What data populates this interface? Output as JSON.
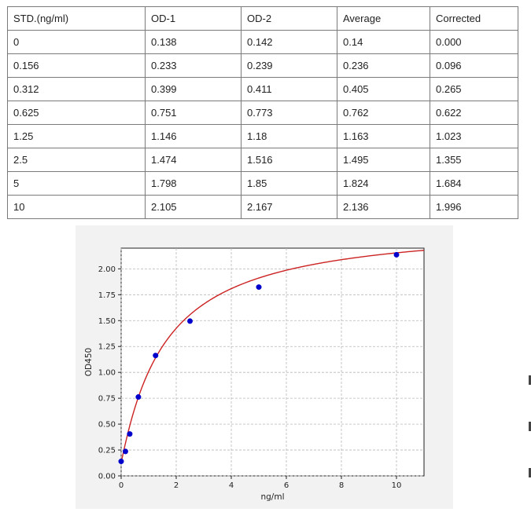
{
  "table": {
    "headers": [
      "STD.(ng/ml)",
      "OD-1",
      "OD-2",
      "Average",
      "Corrected"
    ],
    "rows": [
      [
        "0",
        "0.138",
        "0.142",
        "0.14",
        "0.000"
      ],
      [
        "0.156",
        "0.233",
        "0.239",
        "0.236",
        "0.096"
      ],
      [
        "0.312",
        "0.399",
        "0.411",
        "0.405",
        "0.265"
      ],
      [
        "0.625",
        "0.751",
        "0.773",
        "0.762",
        "0.622"
      ],
      [
        "1.25",
        "1.146",
        "1.18",
        "1.163",
        "1.023"
      ],
      [
        "2.5",
        "1.474",
        "1.516",
        "1.495",
        "1.355"
      ],
      [
        "5",
        "1.798",
        "1.85",
        "1.824",
        "1.684"
      ],
      [
        "10",
        "2.105",
        "2.167",
        "2.136",
        "1.996"
      ]
    ]
  },
  "chart_data": {
    "type": "scatter",
    "xlabel": "ng/ml",
    "ylabel": "OD450",
    "xlim": [
      0,
      11
    ],
    "ylim": [
      0,
      2.2
    ],
    "xticks": [
      "0",
      "2",
      "4",
      "6",
      "8",
      "10"
    ],
    "yticks": [
      "0.00",
      "0.25",
      "0.50",
      "0.75",
      "1.00",
      "1.25",
      "1.50",
      "1.75",
      "2.00"
    ],
    "grid": true,
    "series": [
      {
        "kind": "points",
        "color": "#0000cc",
        "x": [
          0,
          0.156,
          0.312,
          0.625,
          1.25,
          2.5,
          5,
          10
        ],
        "y": [
          0.14,
          0.236,
          0.405,
          0.762,
          1.163,
          1.495,
          1.824,
          2.136
        ]
      },
      {
        "kind": "fitted-curve",
        "color": "#cc2222"
      }
    ]
  }
}
